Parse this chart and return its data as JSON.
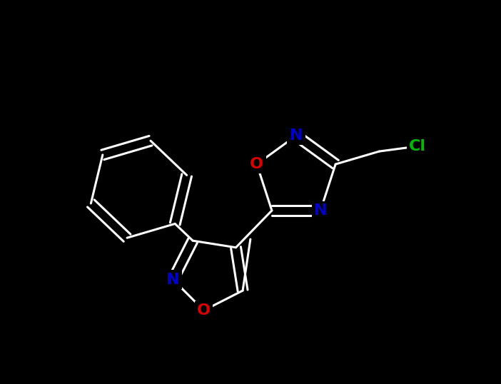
{
  "background_color": "#000000",
  "atom_colors": {
    "C": "#ffffff",
    "N": "#0000cc",
    "O": "#dd0000",
    "Cl": "#00bb00"
  },
  "bond_color": "#ffffff",
  "figsize": [
    7.02,
    5.38
  ],
  "dpi": 100,
  "xlim": [
    0,
    702
  ],
  "ylim": [
    0,
    538
  ]
}
